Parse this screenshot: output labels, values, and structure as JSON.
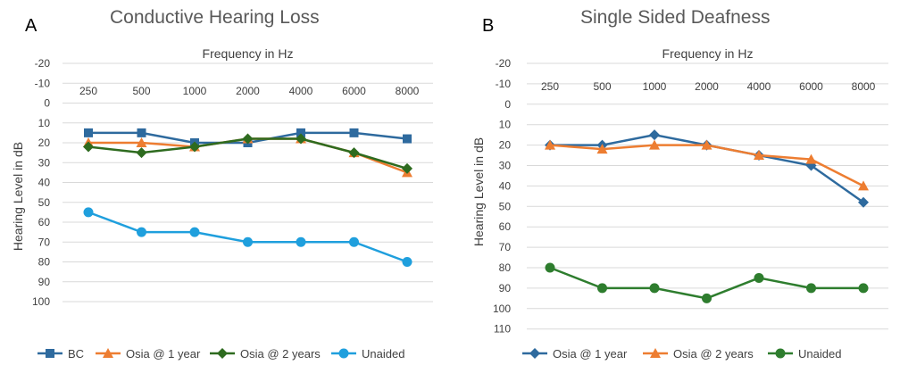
{
  "chart_data": [
    {
      "type": "line",
      "panel_label": "A",
      "title": "Conductive Hearing Loss",
      "xlabel": "Frequency in Hz",
      "ylabel": "Hearing Level in dB",
      "categories": [
        "250",
        "500",
        "1000",
        "2000",
        "4000",
        "6000",
        "8000"
      ],
      "yticks": [
        "-20",
        "-10",
        "0",
        "10",
        "20",
        "30",
        "40",
        "50",
        "60",
        "70",
        "80",
        "90",
        "100"
      ],
      "ylim": [
        -20,
        100
      ],
      "y_inverted": true,
      "x_axis_position": "top",
      "grid": true,
      "legend_position": "bottom",
      "series": [
        {
          "name": "BC",
          "color": "#2E6A9E",
          "marker": "square",
          "values": [
            15,
            15,
            20,
            20,
            15,
            15,
            18
          ]
        },
        {
          "name": "Osia @ 1 year",
          "color": "#ED7D31",
          "marker": "triangle",
          "values": [
            20,
            20,
            22,
            18,
            18,
            25,
            35
          ]
        },
        {
          "name": "Osia @ 2 years",
          "color": "#2E6B1F",
          "marker": "diamond",
          "values": [
            22,
            25,
            22,
            18,
            18,
            25,
            33
          ]
        },
        {
          "name": "Unaided",
          "color": "#1F9FDD",
          "marker": "circle",
          "values": [
            55,
            65,
            65,
            70,
            70,
            70,
            80
          ]
        }
      ]
    },
    {
      "type": "line",
      "panel_label": "B",
      "title": "Single Sided Deafness",
      "xlabel": "Frequency in Hz",
      "ylabel": "Hearing Level in dB",
      "categories": [
        "250",
        "500",
        "1000",
        "2000",
        "4000",
        "6000",
        "8000"
      ],
      "yticks": [
        "-20",
        "-10",
        "0",
        "10",
        "20",
        "30",
        "40",
        "50",
        "60",
        "70",
        "80",
        "90",
        "100",
        "110"
      ],
      "ylim": [
        -20,
        110
      ],
      "y_inverted": true,
      "x_axis_position": "top",
      "grid": true,
      "legend_position": "bottom",
      "series": [
        {
          "name": "Osia @ 1 year",
          "color": "#2E6A9E",
          "marker": "diamond",
          "values": [
            20,
            20,
            15,
            20,
            25,
            30,
            48
          ]
        },
        {
          "name": "Osia @ 2 years",
          "color": "#ED7D31",
          "marker": "triangle",
          "values": [
            20,
            22,
            20,
            20,
            25,
            27,
            40
          ]
        },
        {
          "name": "Unaided",
          "color": "#2E7D2E",
          "marker": "circle",
          "values": [
            80,
            90,
            90,
            95,
            85,
            90,
            90
          ]
        }
      ]
    }
  ]
}
